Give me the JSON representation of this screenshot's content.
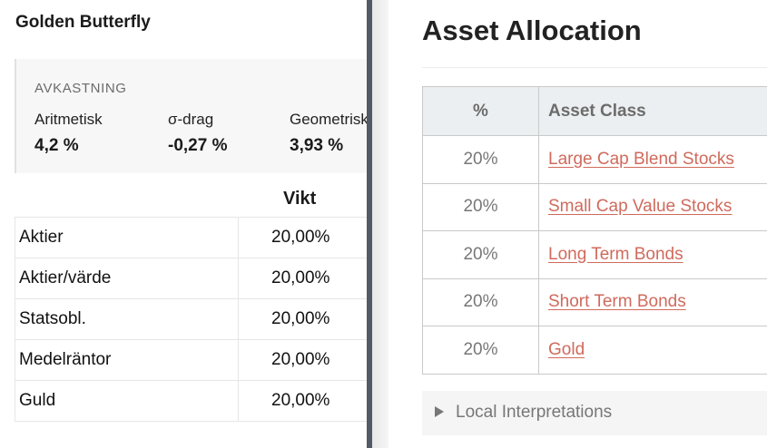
{
  "left": {
    "title": "Golden Butterfly",
    "returns": {
      "label": "AVKASTNING",
      "metrics": [
        {
          "label": "Aritmetisk",
          "value": "4,2 %"
        },
        {
          "label": "σ-drag",
          "value": "-0,27 %"
        },
        {
          "label": "Geometrisk",
          "value": "3,93 %"
        }
      ]
    },
    "weights": {
      "header": "Vikt",
      "rows": [
        {
          "name": "Aktier",
          "value": "20,00%"
        },
        {
          "name": "Aktier/värde",
          "value": "20,00%"
        },
        {
          "name": "Statsobl.",
          "value": "20,00%"
        },
        {
          "name": "Medelräntor",
          "value": "20,00%"
        },
        {
          "name": "Guld",
          "value": "20,00%"
        }
      ]
    }
  },
  "right": {
    "title": "Asset Allocation",
    "table": {
      "headers": {
        "pct": "%",
        "cls": "Asset Class"
      },
      "rows": [
        {
          "pct": "20%",
          "cls": "Large Cap Blend Stocks"
        },
        {
          "pct": "20%",
          "cls": "Small Cap Value Stocks"
        },
        {
          "pct": "20%",
          "cls": "Long Term Bonds"
        },
        {
          "pct": "20%",
          "cls": "Short Term Bonds"
        },
        {
          "pct": "20%",
          "cls": "Gold"
        }
      ]
    },
    "details_label": "Local Interpretations"
  },
  "colors": {
    "link": "#d06a5c",
    "divider": "#525a66",
    "header_bg": "#eceff1"
  },
  "icons": {
    "details_toggle": "triangle-right-icon"
  }
}
